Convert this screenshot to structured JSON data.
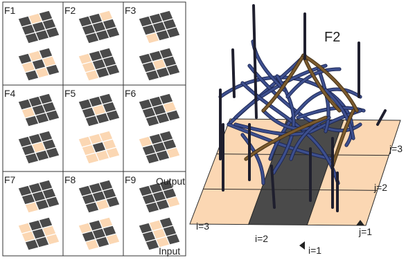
{
  "panels": [
    {
      "label": "F1",
      "top": [
        0,
        1,
        0,
        0,
        0,
        0,
        0,
        0,
        0
      ],
      "bottom": [
        0,
        1,
        0,
        1,
        0,
        1,
        0,
        1,
        0
      ]
    },
    {
      "label": "F2",
      "top": [
        0,
        0,
        1,
        0,
        0,
        0,
        0,
        0,
        0
      ],
      "bottom": [
        1,
        0,
        0,
        1,
        0,
        0,
        1,
        0,
        0
      ]
    },
    {
      "label": "F3",
      "top": [
        0,
        0,
        0,
        0,
        0,
        0,
        1,
        0,
        0
      ],
      "bottom": [
        0,
        0,
        0,
        0,
        1,
        0,
        0,
        0,
        0
      ]
    },
    {
      "label": "F4",
      "top": [
        0,
        0,
        0,
        1,
        0,
        0,
        0,
        0,
        0
      ],
      "bottom": [
        0,
        0,
        0,
        0,
        1,
        0,
        0,
        0,
        0
      ]
    },
    {
      "label": "F5",
      "top": [
        0,
        0,
        0,
        0,
        1,
        0,
        0,
        0,
        0
      ],
      "bottom": [
        1,
        1,
        1,
        1,
        0,
        1,
        1,
        1,
        1
      ]
    },
    {
      "label": "F6",
      "top": [
        0,
        0,
        0,
        0,
        0,
        1,
        0,
        0,
        0
      ],
      "bottom": [
        1,
        0,
        0,
        0,
        0,
        0,
        0,
        0,
        1
      ]
    },
    {
      "label": "F7",
      "top": [
        0,
        0,
        0,
        0,
        0,
        0,
        1,
        0,
        0
      ],
      "bottom": [
        1,
        0,
        0,
        1,
        0,
        1,
        0,
        0,
        1
      ]
    },
    {
      "label": "F8",
      "top": [
        0,
        0,
        0,
        0,
        0,
        0,
        0,
        1,
        0
      ],
      "bottom": [
        1,
        0,
        1,
        0,
        0,
        0,
        1,
        0,
        1
      ]
    },
    {
      "label": "F9",
      "top": [
        0,
        0,
        0,
        0,
        0,
        0,
        0,
        0,
        1
      ],
      "bottom": [
        0,
        1,
        0,
        0,
        1,
        0,
        0,
        1,
        0
      ]
    }
  ],
  "annotations": {
    "output": "Output",
    "input": "Input"
  },
  "structure": {
    "title": "F2",
    "row_labels": [
      "i=3",
      "i=2",
      "i=1"
    ],
    "column_labels": [
      "j=3",
      "j=2",
      "j=1"
    ],
    "strip_shading": [
      "light",
      "dark",
      "light"
    ]
  },
  "colors": {
    "dark_cell": "#4a4a4a",
    "light_cell": "#fbd7b3",
    "grid_line": "#2a2a2a",
    "tube_blue": "#3d4f8e",
    "tube_brown": "#7a5a2e",
    "post": "#1f1f2e"
  }
}
